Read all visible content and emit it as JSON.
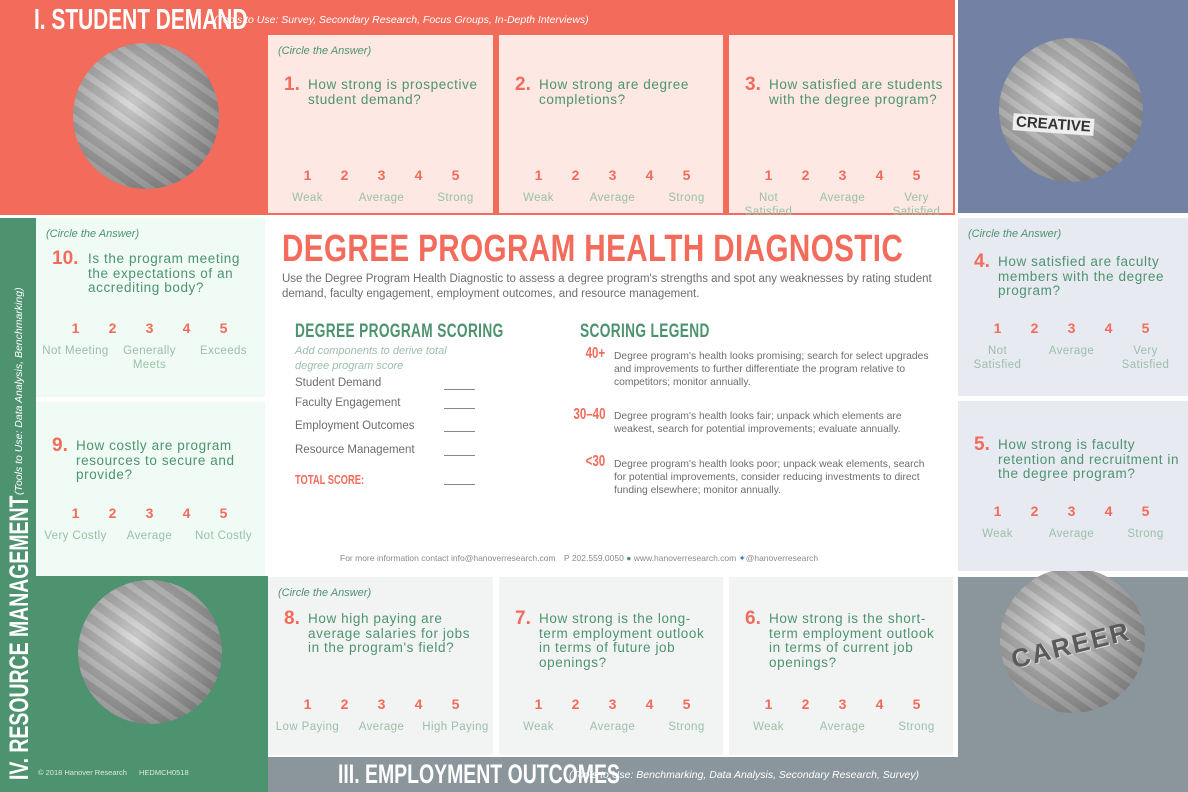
{
  "sections": {
    "student_demand": {
      "title": "I. STUDENT DEMAND",
      "tools": "(Tools to Use: Survey, Secondary Research, Focus Groups, In-Depth Interviews)",
      "color": "#f26b5b"
    },
    "faculty_engagement": {
      "color": "#7381a5"
    },
    "employment_outcomes": {
      "title": "III. EMPLOYMENT OUTCOMES",
      "tools": "(Tools to Use: Benchmarking, Data Analysis, Secondary Research, Survey)",
      "color": "#8a959c"
    },
    "resource_management": {
      "title": "IV. RESOURCE MANAGEMENT",
      "tools": "(Tools to Use: Data Analysis, Benchmarking)",
      "color": "#4e9370"
    }
  },
  "circle_note": "(Circle the Answer)",
  "questions": [
    {
      "id": "q1",
      "num": "1.",
      "text": "How strong is prospective student demand?",
      "labels": [
        "Weak",
        "Average",
        "Strong"
      ],
      "note": true
    },
    {
      "id": "q2",
      "num": "2.",
      "text": "How strong are degree completions?",
      "labels": [
        "Weak",
        "Average",
        "Strong"
      ]
    },
    {
      "id": "q3",
      "num": "3.",
      "text": "How satisfied are students with the degree program?",
      "labels": [
        "Not Satisfied",
        "Average",
        "Very Satisfied"
      ]
    },
    {
      "id": "q4",
      "num": "4.",
      "text": "How satisfied are faculty members with the degree program?",
      "labels": [
        "Not Satisfied",
        "Average",
        "Very Satisfied"
      ],
      "note": true
    },
    {
      "id": "q5",
      "num": "5.",
      "text": "How strong is faculty retention and recruitment in the degree program?",
      "labels": [
        "Weak",
        "Average",
        "Strong"
      ]
    },
    {
      "id": "q6",
      "num": "6.",
      "text": "How strong is the short-term employment outlook in terms of current job openings?",
      "labels": [
        "Weak",
        "Average",
        "Strong"
      ]
    },
    {
      "id": "q7",
      "num": "7.",
      "text": "How strong is the long-term employment outlook in terms of future job openings?",
      "labels": [
        "Weak",
        "Average",
        "Strong"
      ]
    },
    {
      "id": "q8",
      "num": "8.",
      "text": "How high paying are average salaries for jobs in the program's field?",
      "labels": [
        "Low Paying",
        "Average",
        "High Paying"
      ],
      "note": true
    },
    {
      "id": "q9",
      "num": "9.",
      "text": "How costly are program resources to secure and provide?",
      "labels": [
        "Very Costly",
        "Average",
        "Not Costly"
      ]
    },
    {
      "id": "q10",
      "num": "10.",
      "text": "Is the program meeting the expectations of an accrediting body?",
      "labels": [
        "Not Meeting",
        "Generally Meets",
        "Exceeds"
      ],
      "note": true
    }
  ],
  "scale": [
    "1",
    "2",
    "3",
    "4",
    "5"
  ],
  "main": {
    "title": "DEGREE PROGRAM HEALTH DIAGNOSTIC",
    "description": "Use the Degree Program Health Diagnostic to assess a degree program's strengths and spot any weaknesses by rating student demand, faculty engagement, employment outcomes, and resource management.",
    "scoring": {
      "heading": "DEGREE PROGRAM SCORING",
      "subtitle": "Add components to derive total degree program score",
      "rows": [
        "Student Demand",
        "Faculty Engagement",
        "Employment Outcomes",
        "Resource Management"
      ],
      "total": "TOTAL SCORE:"
    },
    "legend": {
      "heading": "SCORING LEGEND",
      "items": [
        {
          "range": "40+",
          "text": "Degree program's health looks promising; search for select upgrades and improvements to further differentiate the program relative to competitors; monitor annually."
        },
        {
          "range": "30–40",
          "text": "Degree program's health looks fair; unpack which elements are weakest, search for potential improvements; evaluate annually."
        },
        {
          "range": "<30",
          "text": "Degree program's health looks poor; unpack weak elements, search for potential improvements, consider reducing investments to direct funding elsewhere; monitor annually."
        }
      ]
    },
    "contact": {
      "text": "For more information contact info@hanoverresearch.com",
      "phone": "P 202.559.0050",
      "web": "www.hanoverresearch.com",
      "twitter": "@hanoverresearch"
    }
  },
  "footer": {
    "copyright": "© 2018 Hanover Research",
    "code": "HEDMCH0518"
  },
  "photos": {
    "student": "CREATIVE",
    "career": "CAREER"
  }
}
